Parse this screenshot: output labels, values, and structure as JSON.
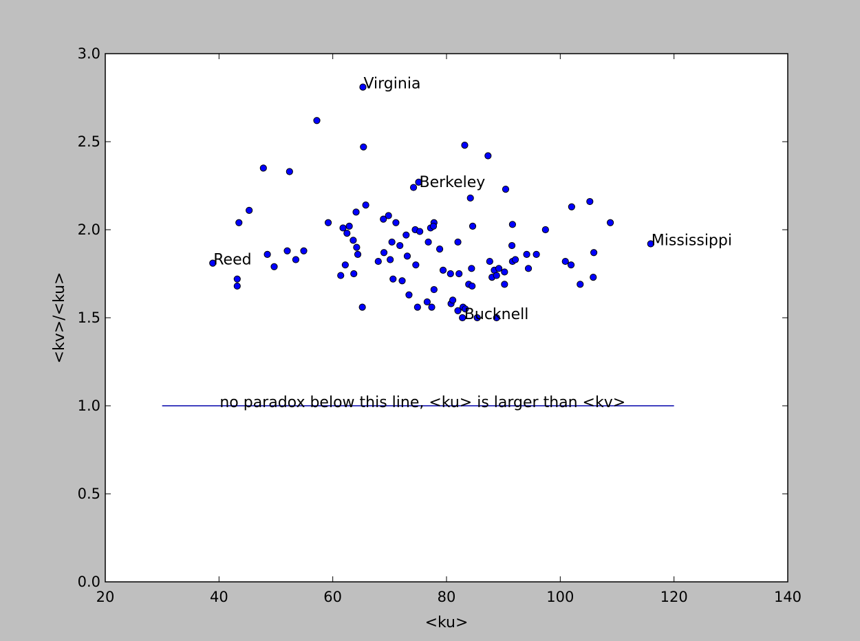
{
  "chart_data": {
    "type": "scatter",
    "title": "",
    "xlabel": "<ku>",
    "ylabel": "<kv>/<ku>",
    "xlim": [
      20,
      140
    ],
    "ylim": [
      0.0,
      3.0
    ],
    "xticks": [
      "20",
      "40",
      "60",
      "80",
      "100",
      "120",
      "140"
    ],
    "yticks": [
      "0.0",
      "0.5",
      "1.0",
      "1.5",
      "2.0",
      "2.5",
      "3.0"
    ],
    "grid": false,
    "colors": {
      "marker": "#0000ff",
      "line": "#0000aa",
      "plot_bg": "#ffffff",
      "figure_bg": "#bfbfbf"
    },
    "series": [
      {
        "points": [
          [
            65.3,
            2.81
          ],
          [
            57.2,
            2.62
          ],
          [
            65.4,
            2.47
          ],
          [
            83.2,
            2.48
          ],
          [
            87.3,
            2.42
          ],
          [
            47.8,
            2.35
          ],
          [
            52.4,
            2.33
          ],
          [
            74.2,
            2.24
          ],
          [
            75.1,
            2.27
          ],
          [
            90.4,
            2.23
          ],
          [
            84.2,
            2.18
          ],
          [
            105.2,
            2.16
          ],
          [
            102.0,
            2.13
          ],
          [
            65.8,
            2.14
          ],
          [
            45.3,
            2.11
          ],
          [
            64.1,
            2.1
          ],
          [
            43.5,
            2.04
          ],
          [
            59.2,
            2.04
          ],
          [
            61.8,
            2.01
          ],
          [
            62.9,
            2.02
          ],
          [
            62.5,
            1.98
          ],
          [
            63.6,
            1.94
          ],
          [
            64.2,
            1.9
          ],
          [
            64.4,
            1.86
          ],
          [
            68.9,
            2.06
          ],
          [
            69.8,
            2.08
          ],
          [
            71.1,
            2.04
          ],
          [
            72.9,
            1.97
          ],
          [
            74.5,
            2.0
          ],
          [
            75.3,
            1.99
          ],
          [
            77.2,
            2.01
          ],
          [
            77.8,
            2.04
          ],
          [
            77.7,
            2.02
          ],
          [
            84.6,
            2.02
          ],
          [
            91.6,
            2.03
          ],
          [
            97.4,
            2.0
          ],
          [
            108.8,
            2.04
          ],
          [
            70.4,
            1.93
          ],
          [
            71.8,
            1.91
          ],
          [
            76.8,
            1.93
          ],
          [
            78.8,
            1.89
          ],
          [
            82.0,
            1.93
          ],
          [
            91.5,
            1.91
          ],
          [
            94.1,
            1.86
          ],
          [
            95.8,
            1.86
          ],
          [
            69.0,
            1.87
          ],
          [
            73.1,
            1.85
          ],
          [
            48.5,
            1.86
          ],
          [
            52.0,
            1.88
          ],
          [
            53.5,
            1.83
          ],
          [
            54.9,
            1.88
          ],
          [
            38.9,
            1.81
          ],
          [
            49.7,
            1.79
          ],
          [
            68.0,
            1.82
          ],
          [
            70.1,
            1.83
          ],
          [
            74.6,
            1.8
          ],
          [
            62.2,
            1.8
          ],
          [
            61.4,
            1.74
          ],
          [
            63.7,
            1.75
          ],
          [
            43.2,
            1.72
          ],
          [
            43.2,
            1.68
          ],
          [
            70.6,
            1.72
          ],
          [
            72.2,
            1.71
          ],
          [
            79.4,
            1.77
          ],
          [
            80.7,
            1.75
          ],
          [
            82.2,
            1.75
          ],
          [
            84.4,
            1.78
          ],
          [
            87.6,
            1.82
          ],
          [
            88.4,
            1.77
          ],
          [
            88.0,
            1.73
          ],
          [
            88.8,
            1.74
          ],
          [
            89.2,
            1.78
          ],
          [
            90.2,
            1.76
          ],
          [
            91.6,
            1.82
          ],
          [
            92.1,
            1.83
          ],
          [
            94.4,
            1.78
          ],
          [
            100.9,
            1.82
          ],
          [
            101.9,
            1.8
          ],
          [
            105.9,
            1.87
          ],
          [
            105.8,
            1.73
          ],
          [
            103.5,
            1.69
          ],
          [
            83.9,
            1.69
          ],
          [
            84.5,
            1.68
          ],
          [
            90.2,
            1.69
          ],
          [
            77.8,
            1.66
          ],
          [
            73.4,
            1.63
          ],
          [
            76.6,
            1.59
          ],
          [
            77.4,
            1.56
          ],
          [
            74.9,
            1.56
          ],
          [
            65.2,
            1.56
          ],
          [
            80.8,
            1.58
          ],
          [
            81.1,
            1.6
          ],
          [
            82.0,
            1.54
          ],
          [
            82.9,
            1.56
          ],
          [
            83.3,
            1.55
          ],
          [
            82.8,
            1.5
          ],
          [
            85.4,
            1.5
          ],
          [
            88.8,
            1.5
          ],
          [
            115.9,
            1.92
          ]
        ]
      }
    ],
    "reference_line": {
      "y": 1.0,
      "x_start": 30,
      "x_end": 120
    },
    "annotations": [
      {
        "text": "Virginia",
        "x": 65.3,
        "y": 2.81
      },
      {
        "text": "Berkeley",
        "x": 75.1,
        "y": 2.25
      },
      {
        "text": "Reed",
        "x": 38.9,
        "y": 1.81
      },
      {
        "text": "Mississippi",
        "x": 115.9,
        "y": 1.92
      },
      {
        "text": "Bucknell",
        "x": 83.0,
        "y": 1.5
      },
      {
        "text": "no paradox below this line, <ku> is larger than <kv>",
        "x": 40,
        "y": 1.0
      }
    ]
  }
}
